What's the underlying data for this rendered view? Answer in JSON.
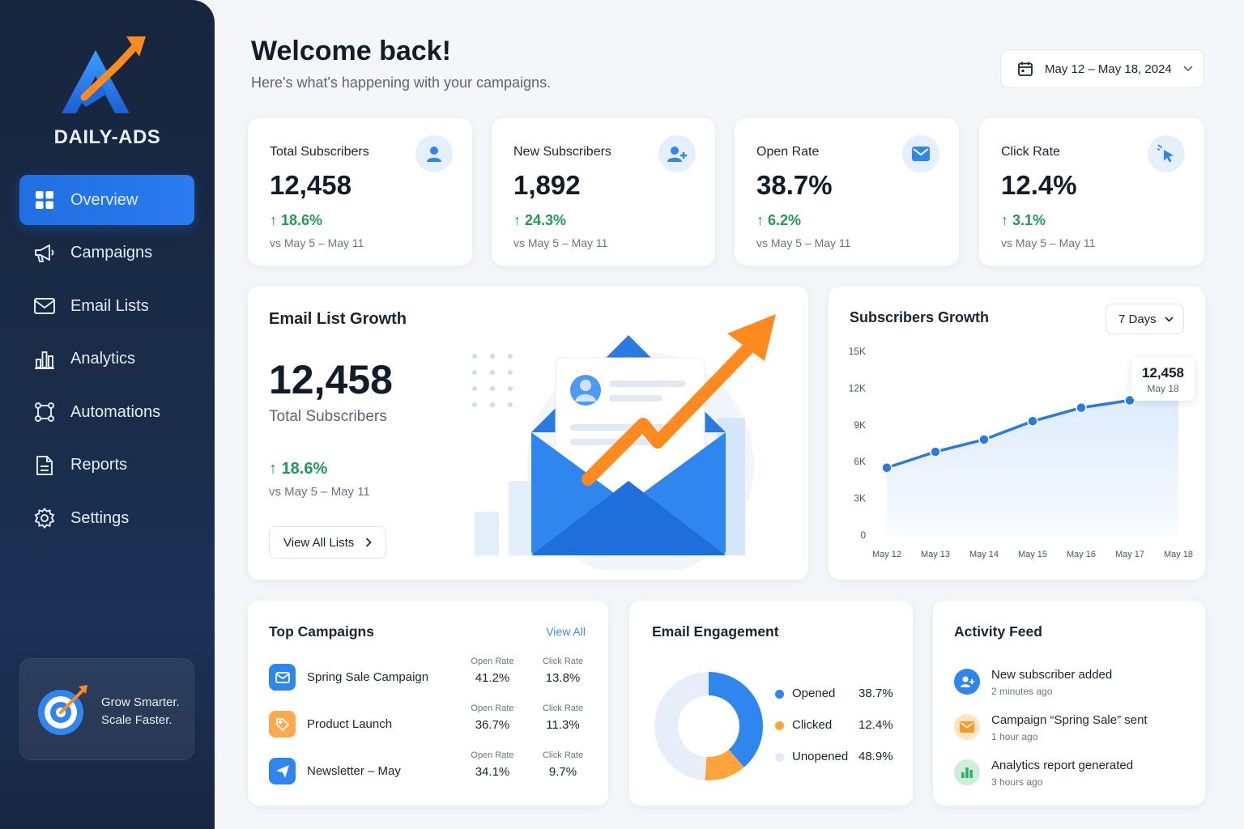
{
  "brand": {
    "name": "DAILY-ADS"
  },
  "sidebar": {
    "items": [
      {
        "label": "Overview",
        "icon": "grid-icon",
        "active": true
      },
      {
        "label": "Campaigns",
        "icon": "megaphone-icon"
      },
      {
        "label": "Email Lists",
        "icon": "envelope-icon"
      },
      {
        "label": "Analytics",
        "icon": "bar-chart-icon"
      },
      {
        "label": "Automations",
        "icon": "workflow-icon"
      },
      {
        "label": "Reports",
        "icon": "document-icon"
      },
      {
        "label": "Settings",
        "icon": "gear-icon"
      }
    ],
    "promo": {
      "line1": "Grow Smarter.",
      "line2": "Scale Faster."
    }
  },
  "header": {
    "title": "Welcome back!",
    "subtitle": "Here's what's happening with your campaigns.",
    "date_range": "May 12 – May 18, 2024"
  },
  "kpis": [
    {
      "label": "Total Subscribers",
      "value": "12,458",
      "change": "18.6%",
      "compare": "vs May 5 – May 11",
      "icon": "user-icon"
    },
    {
      "label": "New Subscribers",
      "value": "1,892",
      "change": "24.3%",
      "compare": "vs May 5 – May 11",
      "icon": "user-plus-icon"
    },
    {
      "label": "Open Rate",
      "value": "38.7%",
      "change": "6.2%",
      "compare": "vs May 5 – May 11",
      "icon": "mail-icon"
    },
    {
      "label": "Click Rate",
      "value": "12.4%",
      "change": "3.1%",
      "compare": "vs May 5 – May 11",
      "icon": "cursor-click-icon"
    }
  ],
  "growth": {
    "title": "Email List Growth",
    "value": "12,458",
    "value_label": "Total Subscribers",
    "change": "18.6%",
    "compare": "vs May 5 – May 11",
    "button": "View All Lists"
  },
  "subs_growth": {
    "title": "Subscribers Growth",
    "range": "7 Days",
    "tooltip_value": "12,458",
    "tooltip_date": "May 18"
  },
  "chart_data": {
    "type": "area",
    "title": "Subscribers Growth",
    "categories": [
      "May 12",
      "May 13",
      "May 14",
      "May 15",
      "May 16",
      "May 17",
      "May 18"
    ],
    "values": [
      5500,
      6800,
      7800,
      9300,
      10400,
      11000,
      12458
    ],
    "yticks": [
      "0",
      "3K",
      "6K",
      "9K",
      "12K",
      "15K"
    ],
    "ylim": [
      0,
      15000
    ],
    "color": "#2a7ae2"
  },
  "campaigns": {
    "title": "Top Campaigns",
    "view_all": "View All",
    "open_label": "Open Rate",
    "click_label": "Click Rate",
    "rows": [
      {
        "name": "Spring Sale Campaign",
        "open": "41.2%",
        "click": "13.8%",
        "icon": "mail-icon",
        "color": "#2f86ee"
      },
      {
        "name": "Product Launch",
        "open": "36.7%",
        "click": "11.3%",
        "icon": "tag-icon",
        "color": "#ffa94d"
      },
      {
        "name": "Newsletter – May",
        "open": "34.1%",
        "click": "9.7%",
        "icon": "send-icon",
        "color": "#2f86ee"
      }
    ]
  },
  "engagement": {
    "title": "Email Engagement",
    "items": [
      {
        "name": "Opened",
        "value": "38.7%",
        "share": 38.7,
        "color": "#2f86ee"
      },
      {
        "name": "Clicked",
        "value": "12.4%",
        "share": 12.4,
        "color": "#ffa33a"
      },
      {
        "name": "Unopened",
        "value": "48.9%",
        "share": 48.9,
        "color": "#e6eef9"
      }
    ]
  },
  "activity": {
    "title": "Activity Feed",
    "items": [
      {
        "text": "New subscriber added",
        "time": "2 minutes ago",
        "icon": "user-plus-icon",
        "color": "#2f86ee",
        "bg": "#e6f0fd"
      },
      {
        "text": "Campaign “Spring Sale” sent",
        "time": "1 hour ago",
        "icon": "mail-icon",
        "color": "#f59a2f",
        "bg": "#fff0de"
      },
      {
        "text": "Analytics report generated",
        "time": "3 hours ago",
        "icon": "bar-chart-icon",
        "color": "#2bb06a",
        "bg": "#e3f6ec"
      }
    ]
  }
}
